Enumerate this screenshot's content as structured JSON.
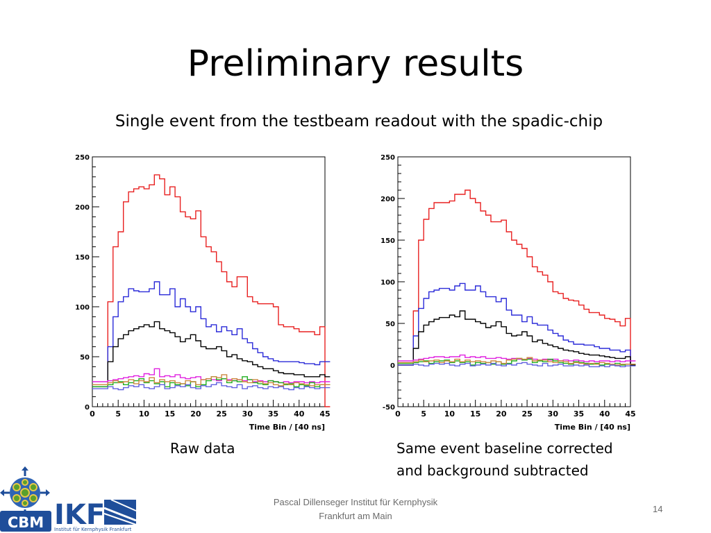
{
  "slide": {
    "title": "Preliminary results",
    "subtitle": "Single event from the testbeam readout with the spadic-chip",
    "caption_left": "Raw data",
    "caption_right_line1": "Same event baseline corrected",
    "caption_right_line2": "and background subtracted",
    "footer_line1": "Pascal Dillenseger  Institut für Kernphysik",
    "footer_line2": "Frankfurt am Main",
    "page_number": "14"
  },
  "logo": {
    "cbm_text": "CBM",
    "ikf_text": "IKF",
    "ikf_subtext": "Institut für Kernphysik Frankfurt",
    "colors": {
      "blue": "#1f4e9a",
      "green": "#5aa02c",
      "yellow": "#e8c84a"
    }
  },
  "chart_data": [
    {
      "type": "line",
      "step": true,
      "xlabel": "Time Bin / [40 ns]",
      "xlim": [
        0,
        45
      ],
      "ylim": [
        0,
        250
      ],
      "xticks": [
        0,
        5,
        10,
        15,
        20,
        25,
        30,
        35,
        40,
        45
      ],
      "yticks": [
        0,
        50,
        100,
        150,
        200,
        250
      ],
      "series": [
        {
          "color": "#e82020",
          "values": [
            20,
            20,
            20,
            105,
            160,
            175,
            205,
            215,
            218,
            220,
            218,
            222,
            232,
            228,
            212,
            220,
            210,
            195,
            190,
            188,
            196,
            170,
            160,
            155,
            145,
            135,
            125,
            120,
            130,
            130,
            110,
            105,
            103,
            103,
            103,
            100,
            82,
            80,
            80,
            78,
            75,
            75,
            75,
            72,
            80,
            0
          ]
        },
        {
          "color": "#2a2ad8",
          "values": [
            20,
            20,
            20,
            60,
            90,
            105,
            110,
            118,
            116,
            115,
            115,
            118,
            125,
            112,
            112,
            118,
            100,
            108,
            100,
            95,
            100,
            88,
            80,
            82,
            75,
            80,
            76,
            72,
            78,
            68,
            64,
            58,
            54,
            50,
            48,
            46,
            45,
            45,
            45,
            45,
            44,
            43,
            43,
            42,
            45,
            45
          ]
        },
        {
          "color": "#000000",
          "values": [
            20,
            20,
            20,
            45,
            60,
            68,
            72,
            76,
            78,
            80,
            82,
            80,
            85,
            78,
            76,
            74,
            70,
            65,
            68,
            72,
            66,
            60,
            58,
            58,
            60,
            56,
            50,
            52,
            48,
            46,
            45,
            42,
            40,
            38,
            38,
            36,
            34,
            33,
            33,
            32,
            32,
            30,
            30,
            30,
            32,
            30
          ]
        },
        {
          "color": "#e020e0",
          "values": [
            25,
            25,
            25,
            26,
            27,
            28,
            29,
            30,
            31,
            30,
            33,
            32,
            38,
            30,
            31,
            30,
            32,
            29,
            28,
            29,
            30,
            27,
            28,
            27,
            26,
            28,
            27,
            26,
            27,
            26,
            27,
            25,
            26,
            25,
            26,
            25,
            24,
            25,
            24,
            25,
            25,
            24,
            25,
            24,
            25,
            25
          ]
        },
        {
          "color": "#20b020",
          "values": [
            20,
            20,
            20,
            22,
            24,
            25,
            22,
            24,
            26,
            28,
            24,
            26,
            23,
            25,
            20,
            24,
            22,
            23,
            21,
            25,
            20,
            22,
            26,
            30,
            27,
            28,
            24,
            26,
            25,
            30,
            27,
            24,
            23,
            22,
            26,
            25,
            24,
            22,
            23,
            20,
            22,
            21,
            24,
            20,
            22,
            22
          ]
        },
        {
          "color": "#cc8840",
          "values": [
            22,
            22,
            22,
            24,
            26,
            24,
            25,
            27,
            23,
            26,
            25,
            29,
            24,
            27,
            25,
            26,
            24,
            23,
            26,
            25,
            22,
            27,
            28,
            30,
            29,
            32,
            26,
            28,
            27,
            25,
            24,
            27,
            25,
            23,
            24,
            22,
            21,
            23,
            22,
            24,
            23,
            22,
            21,
            22,
            22,
            22
          ]
        },
        {
          "color": "#6060e0",
          "values": [
            18,
            18,
            18,
            20,
            18,
            17,
            19,
            21,
            20,
            22,
            19,
            18,
            20,
            22,
            18,
            19,
            21,
            20,
            22,
            19,
            18,
            21,
            20,
            22,
            24,
            21,
            20,
            19,
            22,
            18,
            20,
            21,
            19,
            18,
            20,
            19,
            20,
            18,
            17,
            19,
            18,
            20,
            19,
            18,
            19,
            19
          ]
        }
      ]
    },
    {
      "type": "line",
      "step": true,
      "xlabel": "Time Bin / [40 ns]",
      "xlim": [
        0,
        45
      ],
      "ylim": [
        -50,
        250
      ],
      "xticks": [
        0,
        5,
        10,
        15,
        20,
        25,
        30,
        35,
        40,
        45
      ],
      "yticks": [
        -50,
        0,
        50,
        100,
        150,
        200,
        250
      ],
      "series": [
        {
          "color": "#e82020",
          "values": [
            0,
            0,
            0,
            65,
            150,
            175,
            188,
            195,
            195,
            195,
            197,
            205,
            205,
            210,
            200,
            195,
            185,
            180,
            172,
            172,
            174,
            160,
            150,
            145,
            140,
            130,
            118,
            112,
            108,
            100,
            88,
            86,
            80,
            78,
            77,
            72,
            67,
            63,
            63,
            60,
            56,
            55,
            52,
            47,
            56,
            0
          ]
        },
        {
          "color": "#2a2ad8",
          "values": [
            0,
            0,
            0,
            35,
            68,
            80,
            88,
            90,
            92,
            92,
            90,
            95,
            98,
            90,
            90,
            95,
            88,
            82,
            82,
            76,
            80,
            66,
            60,
            60,
            52,
            58,
            50,
            48,
            48,
            42,
            38,
            35,
            30,
            28,
            25,
            25,
            24,
            24,
            22,
            20,
            20,
            18,
            18,
            16,
            18,
            0
          ]
        },
        {
          "color": "#000000",
          "values": [
            0,
            0,
            0,
            20,
            40,
            48,
            52,
            55,
            57,
            57,
            60,
            58,
            65,
            55,
            55,
            52,
            50,
            45,
            47,
            52,
            46,
            38,
            35,
            36,
            40,
            35,
            28,
            30,
            26,
            24,
            22,
            20,
            18,
            17,
            16,
            14,
            13,
            12,
            12,
            11,
            10,
            9,
            8,
            8,
            10,
            0
          ]
        },
        {
          "color": "#e020e0",
          "values": [
            5,
            5,
            5,
            6,
            7,
            8,
            9,
            10,
            10,
            9,
            10,
            10,
            12,
            9,
            10,
            9,
            10,
            8,
            8,
            9,
            8,
            7,
            8,
            7,
            6,
            8,
            7,
            6,
            7,
            6,
            7,
            5,
            6,
            5,
            6,
            5,
            4,
            5,
            4,
            5,
            5,
            4,
            5,
            4,
            5,
            5
          ]
        },
        {
          "color": "#20b020",
          "values": [
            2,
            2,
            2,
            3,
            4,
            5,
            2,
            4,
            5,
            6,
            3,
            5,
            3,
            4,
            0,
            3,
            2,
            3,
            1,
            4,
            1,
            2,
            5,
            8,
            6,
            7,
            3,
            5,
            4,
            7,
            5,
            3,
            2,
            1,
            4,
            3,
            2,
            1,
            2,
            0,
            1,
            0,
            2,
            0,
            1,
            1
          ]
        },
        {
          "color": "#cc8840",
          "values": [
            3,
            3,
            3,
            4,
            6,
            4,
            5,
            6,
            3,
            5,
            4,
            7,
            4,
            6,
            4,
            5,
            4,
            3,
            5,
            4,
            2,
            6,
            7,
            8,
            7,
            9,
            5,
            6,
            6,
            4,
            3,
            5,
            4,
            2,
            3,
            2,
            1,
            2,
            1,
            3,
            2,
            1,
            0,
            1,
            1,
            1
          ]
        },
        {
          "color": "#6060e0",
          "values": [
            0,
            0,
            0,
            1,
            0,
            -1,
            1,
            2,
            1,
            2,
            0,
            -1,
            1,
            2,
            -1,
            0,
            1,
            0,
            2,
            0,
            -1,
            1,
            0,
            2,
            3,
            1,
            0,
            -1,
            2,
            -1,
            0,
            1,
            -1,
            -1,
            0,
            -1,
            0,
            -2,
            -2,
            -1,
            -2,
            0,
            -1,
            -2,
            -1,
            -1
          ]
        }
      ]
    }
  ]
}
